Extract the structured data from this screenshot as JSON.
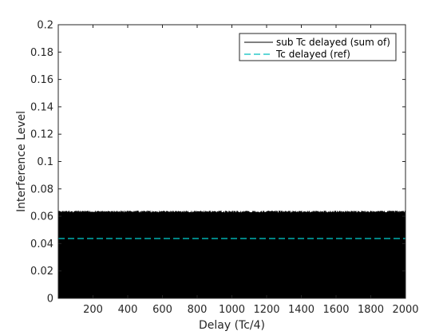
{
  "chart_data": {
    "type": "line",
    "xlabel": "Delay (Tc/4)",
    "ylabel": "Interference Level",
    "xlim": [
      0,
      2000
    ],
    "ylim": [
      0,
      0.2
    ],
    "x_ticks": [
      200,
      400,
      600,
      800,
      1000,
      1200,
      1400,
      1600,
      1800,
      2000
    ],
    "x_tick_labels": [
      "200",
      "400",
      "600",
      "800",
      "1000",
      "1200",
      "1400",
      "1600",
      "1800",
      "2000"
    ],
    "y_ticks": [
      0,
      0.02,
      0.04,
      0.06,
      0.08,
      0.1,
      0.12,
      0.14,
      0.16,
      0.18,
      0.2
    ],
    "y_tick_labels": [
      "0",
      "0.02",
      "0.04",
      "0.06",
      "0.08",
      "0.1",
      "0.12",
      "0.14",
      "0.16",
      "0.18",
      "0.2"
    ],
    "grid": false,
    "legend_position": "top-right",
    "series": [
      {
        "name": "sub Tc delayed (sum of)",
        "color": "#000000",
        "line_style": "solid",
        "x_range": [
          1,
          2000
        ],
        "y_min": 0,
        "y_max": 0.064
      },
      {
        "name": "Tc delayed (ref)",
        "color": "#00bfbf",
        "line_style": "dashed",
        "x_range": [
          0,
          2000
        ],
        "values_constant": 0.0437
      }
    ]
  }
}
